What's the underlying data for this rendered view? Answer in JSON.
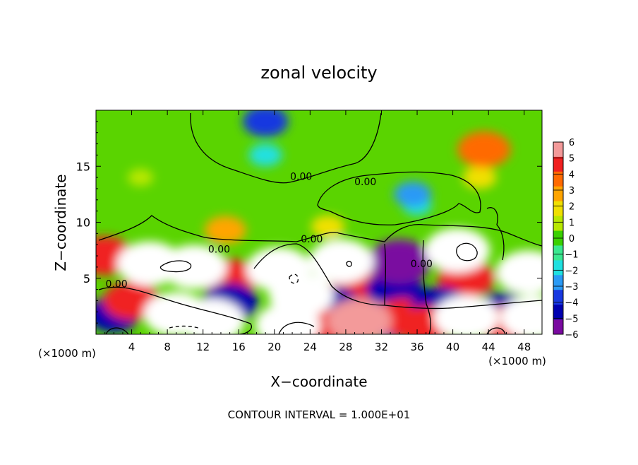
{
  "chart_data": {
    "type": "heatmap",
    "title": "zonal velocity",
    "xlabel": "X−coordinate",
    "ylabel": "Z−coordinate",
    "x_unit_left": "(×1000 m)",
    "x_unit_right": "(×1000 m)",
    "footer": "CONTOUR INTERVAL = 1.000E+01",
    "xlim": [
      0,
      50
    ],
    "ylim": [
      0,
      20
    ],
    "x_ticks": [
      4,
      8,
      12,
      16,
      20,
      24,
      28,
      32,
      36,
      40,
      44,
      48
    ],
    "x_tick_labels": [
      "4",
      "8",
      "12",
      "16",
      "20",
      "24",
      "28",
      "32",
      "36",
      "40",
      "44",
      "48"
    ],
    "y_ticks": [
      5,
      10,
      15
    ],
    "y_tick_labels": [
      "5",
      "10",
      "15"
    ],
    "colorbar": {
      "levels": [
        6,
        5,
        4,
        3,
        2,
        1,
        0,
        -1,
        -2,
        -3,
        -4,
        -5,
        -6
      ],
      "labels": [
        "6",
        "5",
        "4",
        "3",
        "2",
        "1",
        "0",
        "−1",
        "−2",
        "−3",
        "−4",
        "−5",
        "−6"
      ],
      "colors": [
        "#f39a9a",
        "#f02020",
        "#ff6a00",
        "#ffa500",
        "#f0e000",
        "#b8e800",
        "#3ad000",
        "#3ae890",
        "#20e0e0",
        "#2a9af5",
        "#1838e0",
        "#0000b0",
        "#7a0aa0"
      ],
      "saturated_color": "#ffffff"
    },
    "contour_labels": [
      {
        "text": "0.00",
        "x": 23.0,
        "z": 13.8
      },
      {
        "text": "0.00",
        "x": 30.2,
        "z": 13.3
      },
      {
        "text": "0.00",
        "x": 13.8,
        "z": 7.3
      },
      {
        "text": "0.00",
        "x": 24.2,
        "z": 8.2
      },
      {
        "text": "0.00",
        "x": 36.5,
        "z": 6.0
      },
      {
        "text": "0.00",
        "x": 2.3,
        "z": 4.2
      }
    ],
    "features": [
      {
        "x": 19,
        "z": 19,
        "value": -3.5
      },
      {
        "x": 19,
        "z": 16,
        "value": -2
      },
      {
        "x": 43.5,
        "z": 16.5,
        "value": 4.5
      },
      {
        "x": 43,
        "z": 14,
        "value": 2
      },
      {
        "x": 36,
        "z": 11.5,
        "value": -1.5
      },
      {
        "x": 35.5,
        "z": 12.5,
        "value": -2.5
      },
      {
        "x": 14.5,
        "z": 9.3,
        "value": 3
      },
      {
        "x": 5,
        "z": 14,
        "value": 1
      },
      {
        "x": 26,
        "z": 9.6,
        "value": 2
      },
      {
        "x": 2,
        "z": 1.8,
        "value": -4.5
      },
      {
        "x": 1,
        "z": 7,
        "value": 5
      },
      {
        "x": 4,
        "z": 3,
        "value": 5
      },
      {
        "x": 6,
        "z": 6.3,
        "value": 9
      },
      {
        "x": 11,
        "z": 6,
        "value": 9
      },
      {
        "x": 15,
        "z": 5,
        "value": 5
      },
      {
        "x": 15,
        "z": 2.8,
        "value": -5
      },
      {
        "x": 9,
        "z": 1.8,
        "value": 7
      },
      {
        "x": 13,
        "z": 1.2,
        "value": 7
      },
      {
        "x": 20.5,
        "z": 5.8,
        "value": -9
      },
      {
        "x": 23,
        "z": 3.5,
        "value": -8
      },
      {
        "x": 21.5,
        "z": 0.8,
        "value": 7
      },
      {
        "x": 27.5,
        "z": 6.5,
        "value": 8
      },
      {
        "x": 29.5,
        "z": 4.5,
        "value": 5
      },
      {
        "x": 26.5,
        "z": 2.5,
        "value": -5
      },
      {
        "x": 31,
        "z": 3,
        "value": -4.5
      },
      {
        "x": 29.5,
        "z": 1.2,
        "value": 6
      },
      {
        "x": 34,
        "z": 6.5,
        "value": -6
      },
      {
        "x": 33.5,
        "z": 4,
        "value": -5
      },
      {
        "x": 34.5,
        "z": 1.5,
        "value": 5
      },
      {
        "x": 40.5,
        "z": 7.5,
        "value": 9
      },
      {
        "x": 41.5,
        "z": 5,
        "value": 5
      },
      {
        "x": 38.5,
        "z": 2.5,
        "value": -5
      },
      {
        "x": 41.5,
        "z": 1.5,
        "value": 8
      },
      {
        "x": 45.5,
        "z": 2,
        "value": -5
      },
      {
        "x": 48.5,
        "z": 5.5,
        "value": 7
      },
      {
        "x": 49,
        "z": 1.5,
        "value": 8
      },
      {
        "x": 46,
        "z": 0.8,
        "value": 5
      },
      {
        "x": 37,
        "z": 0.8,
        "value": 5
      },
      {
        "x": 25,
        "z": 0.6,
        "value": 5
      },
      {
        "x": 32.5,
        "z": 1.0,
        "value": -4
      }
    ]
  }
}
